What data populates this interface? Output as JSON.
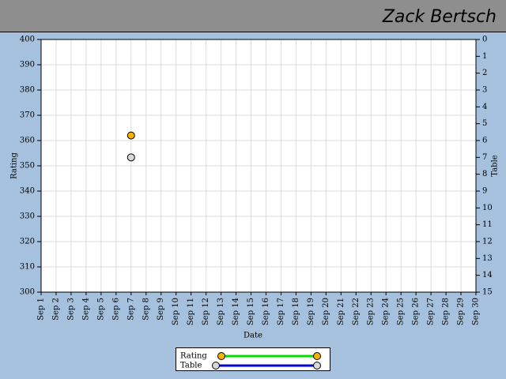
{
  "header": {
    "title": "Zack Bertsch"
  },
  "chart_data": {
    "type": "line",
    "x_label": "Date",
    "y_label": "Rating",
    "y2_label": "Table",
    "categories": [
      "Sep 1",
      "Sep 2",
      "Sep 3",
      "Sep 4",
      "Sep 5",
      "Sep 6",
      "Sep 7",
      "Sep 8",
      "Sep 9",
      "Sep 10",
      "Sep 11",
      "Sep 12",
      "Sep 13",
      "Sep 14",
      "Sep 15",
      "Sep 16",
      "Sep 17",
      "Sep 18",
      "Sep 19",
      "Sep 20",
      "Sep 21",
      "Sep 22",
      "Sep 23",
      "Sep 24",
      "Sep 25",
      "Sep 26",
      "Sep 27",
      "Sep 28",
      "Sep 29",
      "Sep 30"
    ],
    "series": [
      {
        "name": "Rating",
        "color": "#00dd00",
        "marker_color": "#f5b200",
        "values": [
          null,
          null,
          null,
          null,
          null,
          null,
          362,
          null,
          null,
          null,
          null,
          null,
          null,
          null,
          null,
          null,
          null,
          null,
          null,
          null,
          null,
          null,
          null,
          null,
          null,
          null,
          null,
          null,
          null,
          null
        ]
      },
      {
        "name": "Table",
        "color": "#0000cc",
        "marker_color": "#d8d8d8",
        "axis": "y2",
        "values": [
          null,
          null,
          null,
          null,
          null,
          null,
          7,
          null,
          null,
          null,
          null,
          null,
          null,
          null,
          null,
          null,
          null,
          null,
          null,
          null,
          null,
          null,
          null,
          null,
          null,
          null,
          null,
          null,
          null,
          null
        ]
      }
    ],
    "ylim": [
      300,
      400
    ],
    "yticks": [
      300,
      310,
      320,
      330,
      340,
      350,
      360,
      370,
      380,
      390,
      400
    ],
    "y2lim": [
      0,
      15
    ],
    "y2_reversed": true,
    "y2ticks": [
      0,
      1,
      2,
      3,
      4,
      5,
      6,
      7,
      8,
      9,
      10,
      11,
      12,
      13,
      14,
      15
    ],
    "grid": true
  }
}
